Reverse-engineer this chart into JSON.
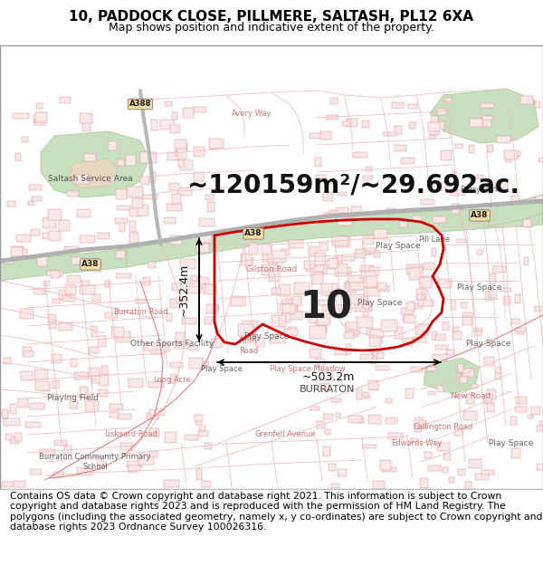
{
  "title_line1": "10, PADDOCK CLOSE, PILLMERE, SALTASH, PL12 6XA",
  "title_line2": "Map shows position and indicative extent of the property.",
  "footer_text": "Contains OS data © Crown copyright and database right 2021. This information is subject to Crown copyright and database rights 2023 and is reproduced with the permission of HM Land Registry. The polygons (including the associated geometry, namely x, y co-ordinates) are subject to Crown copyright and database rights 2023 Ordnance Survey 100026316.",
  "area_label": "~120159m²/~29.692ac.",
  "number_label": "10",
  "dim_label_h": "~352.4m",
  "dim_label_w": "~503.2m",
  "map_bg": "#ffffff",
  "road_light": "#f0c0c0",
  "road_medium": "#e08080",
  "road_heavy": "#cc4444",
  "green_fill": "#c8dfc0",
  "green_edge": "#a0c890",
  "tan_fill": "#e8d8c0",
  "poly_color": "#cc0000",
  "title_fontsize": 11,
  "subtitle_fontsize": 9,
  "footer_fontsize": 7.8,
  "area_fontsize": 20,
  "num_fontsize": 30,
  "dim_fontsize": 9,
  "label_fontsize": 6.5
}
